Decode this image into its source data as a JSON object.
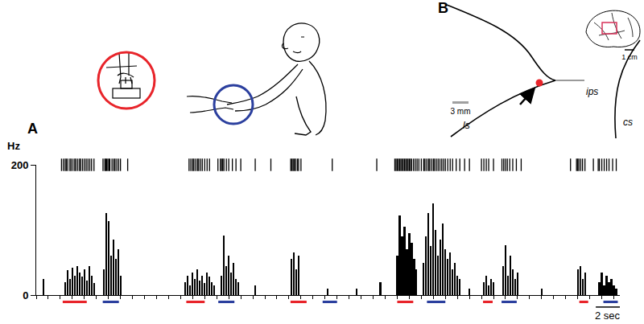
{
  "chart_data": {
    "type": "bar",
    "color": "#000000",
    "y_label": "Hz",
    "x": [
      0.6,
      2.4,
      2.6,
      2.8,
      3.0,
      3.2,
      3.4,
      3.6,
      3.8,
      4.0,
      4.2,
      4.4,
      4.6,
      4.8,
      5.6,
      5.8,
      6.0,
      6.2,
      6.4,
      6.6,
      6.8,
      7.0,
      12.4,
      12.6,
      12.8,
      13.0,
      13.2,
      13.4,
      13.6,
      13.8,
      14.0,
      14.2,
      14.4,
      14.6,
      14.8,
      15.4,
      15.6,
      15.8,
      16.0,
      16.2,
      16.4,
      16.6,
      16.8,
      18.2,
      21.2,
      21.4,
      21.6,
      21.8,
      24.2,
      26.6,
      28.6,
      30.0,
      30.2,
      30.4,
      30.6,
      30.8,
      31.0,
      31.2,
      31.4,
      31.6,
      32.2,
      32.4,
      32.6,
      32.8,
      33.0,
      33.2,
      33.4,
      33.6,
      33.8,
      34.0,
      34.2,
      34.4,
      34.6,
      34.8,
      35.0,
      35.2,
      36.0,
      37.2,
      37.4,
      37.6,
      37.8,
      38.0,
      38.8,
      39.0,
      39.2,
      39.4,
      39.6,
      39.8,
      40.0,
      42.0,
      45.0,
      45.2,
      45.4,
      45.6,
      46.8,
      47.0,
      47.2,
      47.4,
      47.6,
      47.8,
      48.0,
      48.2
    ],
    "values": [
      25,
      20,
      38,
      25,
      42,
      30,
      44,
      35,
      28,
      40,
      22,
      45,
      30,
      18,
      40,
      126,
      113,
      60,
      85,
      55,
      70,
      30,
      20,
      30,
      15,
      35,
      25,
      40,
      22,
      30,
      18,
      35,
      28,
      20,
      15,
      30,
      91,
      45,
      60,
      35,
      50,
      25,
      20,
      15,
      55,
      65,
      40,
      60,
      10,
      10,
      20,
      60,
      122,
      90,
      105,
      70,
      95,
      80,
      55,
      40,
      50,
      90,
      126,
      75,
      141,
      100,
      60,
      85,
      110,
      70,
      55,
      65,
      40,
      50,
      30,
      25,
      10,
      20,
      30,
      15,
      25,
      20,
      45,
      77,
      30,
      60,
      40,
      25,
      35,
      10,
      40,
      45,
      25,
      35,
      20,
      35,
      15,
      30,
      20,
      25,
      15,
      10
    ],
    "xlim": [
      0,
      48.5
    ],
    "xticks": [
      0,
      1,
      2,
      3,
      4,
      5,
      6,
      7,
      8,
      9,
      10,
      11,
      12,
      13,
      14,
      15,
      16,
      17,
      18,
      19,
      20,
      21,
      22,
      23,
      24,
      25,
      26,
      27,
      28,
      29,
      30,
      31,
      32,
      33,
      34,
      35,
      36,
      37,
      38,
      39,
      40,
      41,
      42,
      43,
      44,
      45,
      46,
      47,
      48
    ],
    "ylim": [
      0,
      200
    ],
    "yticks": [
      0,
      200
    ],
    "grid": false,
    "tick_labels": "y",
    "raster": {
      "color": "#000000",
      "times": [
        2.1,
        2.25,
        2.4,
        2.5,
        2.62,
        2.8,
        2.9,
        3.05,
        3.2,
        3.3,
        3.45,
        3.6,
        3.7,
        3.85,
        4.0,
        4.15,
        4.3,
        4.45,
        4.6,
        4.8,
        5.55,
        5.7,
        5.78,
        5.85,
        5.95,
        6.05,
        6.12,
        6.3,
        6.45,
        6.55,
        6.7,
        6.85,
        7.0,
        7.6,
        12.7,
        12.85,
        13.0,
        13.1,
        13.25,
        13.4,
        13.5,
        13.65,
        13.8,
        14.0,
        14.2,
        14.4,
        15.1,
        15.3,
        15.4,
        15.5,
        15.6,
        15.8,
        16.0,
        16.3,
        16.6,
        17.0,
        18.2,
        19.5,
        21.15,
        21.25,
        21.35,
        21.45,
        21.55,
        21.7,
        21.8,
        22.0,
        24.6,
        28.3,
        29.8,
        29.9,
        30.0,
        30.1,
        30.2,
        30.3,
        30.4,
        30.5,
        30.6,
        30.7,
        30.8,
        30.9,
        31.0,
        31.1,
        31.2,
        31.35,
        31.5,
        31.65,
        31.8,
        32.0,
        32.2,
        32.3,
        32.45,
        32.6,
        32.7,
        32.85,
        33.0,
        33.1,
        33.25,
        33.4,
        33.55,
        33.7,
        33.85,
        34.0,
        34.2,
        34.4,
        34.6,
        34.9,
        35.2,
        35.6,
        36.0,
        37.0,
        37.2,
        37.4,
        37.6,
        38.0,
        38.7,
        38.85,
        39.0,
        39.15,
        39.35,
        39.6,
        39.9,
        40.3,
        44.4,
        44.9,
        45.0,
        45.1,
        45.25,
        45.4,
        45.6,
        46.3,
        46.7,
        46.8,
        47.0,
        47.2,
        47.4,
        47.6,
        47.9,
        48.2
      ]
    },
    "event_markers": [
      {
        "color": "#e8242a",
        "intervals": [
          [
            2.2,
            4.2
          ],
          [
            12.47,
            14.0
          ],
          [
            21.13,
            22.47
          ],
          [
            30.0,
            31.33
          ],
          [
            37.13,
            37.93
          ],
          [
            45.13,
            45.87
          ]
        ]
      },
      {
        "color": "#2b3f9e",
        "intervals": [
          [
            5.53,
            6.87
          ],
          [
            15.13,
            16.47
          ],
          [
            23.8,
            25.0
          ],
          [
            32.47,
            34.0
          ],
          [
            38.67,
            39.93
          ],
          [
            47.13,
            48.33
          ]
        ]
      }
    ],
    "scale_bar": {
      "value": 2,
      "label": "2 sec"
    }
  },
  "panel_labels": [
    "A",
    "B"
  ],
  "panel_a": {
    "colors": [
      "#e8242a",
      "#2b3f9e"
    ]
  },
  "panel_b": {
    "sulci": [
      "ls",
      "ips",
      "cs"
    ],
    "site_color": "#e8242a",
    "scale_bars": [
      {
        "value": 3,
        "label": "3 mm"
      },
      {
        "value": 1,
        "label": "1 cm"
      }
    ]
  }
}
